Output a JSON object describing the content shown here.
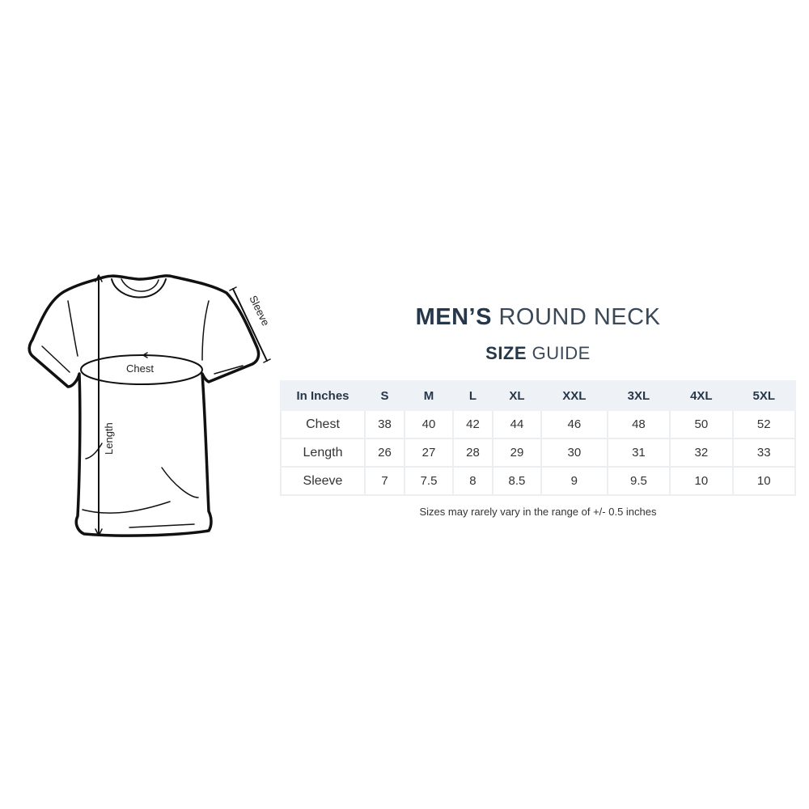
{
  "title": {
    "bold": "MEN’S",
    "light": "ROUND NECK"
  },
  "subtitle": {
    "bold": "SIZE",
    "light": "GUIDE"
  },
  "diagram": {
    "labels": {
      "chest": "Chest",
      "length": "Length",
      "sleeve": "Sleeve"
    }
  },
  "table": {
    "headers": [
      "In Inches",
      "S",
      "M",
      "L",
      "XL",
      "XXL",
      "3XL",
      "4XL",
      "5XL"
    ],
    "rows": [
      {
        "label": "Chest",
        "values": [
          "38",
          "40",
          "42",
          "44",
          "46",
          "48",
          "50",
          "52"
        ]
      },
      {
        "label": "Length",
        "values": [
          "26",
          "27",
          "28",
          "29",
          "30",
          "31",
          "32",
          "33"
        ]
      },
      {
        "label": "Sleeve",
        "values": [
          "7",
          "7.5",
          "8",
          "8.5",
          "9",
          "9.5",
          "10",
          "10"
        ]
      }
    ]
  },
  "note": "Sizes may rarely vary in the range of +/- 0.5 inches",
  "colors": {
    "heading": "#26374a",
    "header_bg": "#eef2f6"
  }
}
